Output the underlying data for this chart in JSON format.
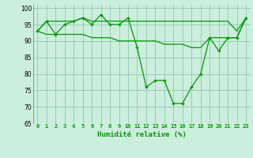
{
  "xlabel": "Humidité relative (%)",
  "background_color": "#cceedd",
  "grid_color": "#99ccbb",
  "line_color": "#009900",
  "ylim": [
    65,
    101
  ],
  "xlim": [
    -0.5,
    23.5
  ],
  "yticks": [
    65,
    70,
    75,
    80,
    85,
    90,
    95,
    100
  ],
  "xticks": [
    0,
    1,
    2,
    3,
    4,
    5,
    6,
    7,
    8,
    9,
    10,
    11,
    12,
    13,
    14,
    15,
    16,
    17,
    18,
    19,
    20,
    21,
    22,
    23
  ],
  "series": [
    {
      "x": [
        0,
        1,
        2,
        3,
        4,
        5,
        6,
        7,
        8,
        9,
        10,
        11,
        12,
        13,
        14,
        15,
        16,
        17,
        18,
        19,
        20,
        21,
        22,
        23
      ],
      "y": [
        93,
        96,
        92,
        95,
        96,
        97,
        95,
        98,
        95,
        95,
        97,
        88,
        76,
        78,
        78,
        71,
        71,
        76,
        80,
        91,
        87,
        91,
        91,
        97
      ],
      "marker": "+"
    },
    {
      "x": [
        0,
        1,
        2,
        3,
        4,
        5,
        6,
        7,
        8,
        9,
        10,
        11,
        12,
        13,
        14,
        15,
        16,
        17,
        18,
        19,
        20,
        21,
        22,
        23
      ],
      "y": [
        93,
        96,
        96,
        96,
        96,
        97,
        96,
        96,
        96,
        96,
        96,
        96,
        96,
        96,
        96,
        96,
        96,
        96,
        96,
        96,
        96,
        96,
        93,
        97
      ],
      "marker": null
    },
    {
      "x": [
        0,
        1,
        2,
        3,
        4,
        5,
        6,
        7,
        8,
        9,
        10,
        11,
        12,
        13,
        14,
        15,
        16,
        17,
        18,
        19,
        20,
        21,
        22,
        23
      ],
      "y": [
        93,
        92,
        92,
        92,
        92,
        92,
        91,
        91,
        91,
        90,
        90,
        90,
        90,
        90,
        89,
        89,
        89,
        88,
        88,
        91,
        91,
        91,
        91,
        97
      ],
      "marker": null
    }
  ]
}
